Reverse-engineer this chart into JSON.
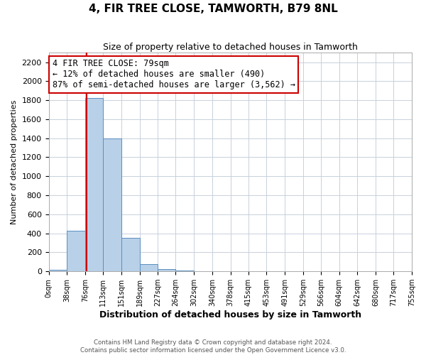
{
  "title": "4, FIR TREE CLOSE, TAMWORTH, B79 8NL",
  "subtitle": "Size of property relative to detached houses in Tamworth",
  "xlabel": "Distribution of detached houses by size in Tamworth",
  "ylabel": "Number of detached properties",
  "bar_edges": [
    0,
    38,
    76,
    113,
    151,
    189,
    227,
    264,
    302,
    340,
    378,
    415,
    453,
    491,
    529,
    566,
    604,
    642,
    680,
    717,
    755
  ],
  "bar_heights": [
    20,
    430,
    1820,
    1400,
    350,
    80,
    25,
    8,
    5,
    0,
    0,
    0,
    0,
    0,
    0,
    0,
    0,
    0,
    0,
    0
  ],
  "bar_color": "#b8d0e8",
  "bar_edge_color": "#5a8fc0",
  "vline_x": 79,
  "vline_color": "#cc0000",
  "ylim": [
    0,
    2300
  ],
  "yticks": [
    0,
    200,
    400,
    600,
    800,
    1000,
    1200,
    1400,
    1600,
    1800,
    2000,
    2200
  ],
  "xtick_labels": [
    "0sqm",
    "38sqm",
    "76sqm",
    "113sqm",
    "151sqm",
    "189sqm",
    "227sqm",
    "264sqm",
    "302sqm",
    "340sqm",
    "378sqm",
    "415sqm",
    "453sqm",
    "491sqm",
    "529sqm",
    "566sqm",
    "604sqm",
    "642sqm",
    "680sqm",
    "717sqm",
    "755sqm"
  ],
  "annotation_line1": "4 FIR TREE CLOSE: 79sqm",
  "annotation_line2": "← 12% of detached houses are smaller (490)",
  "annotation_line3": "87% of semi-detached houses are larger (3,562) →",
  "footer_line1": "Contains HM Land Registry data © Crown copyright and database right 2024.",
  "footer_line2": "Contains public sector information licensed under the Open Government Licence v3.0.",
  "background_color": "#ffffff",
  "grid_color": "#c8d0dc"
}
